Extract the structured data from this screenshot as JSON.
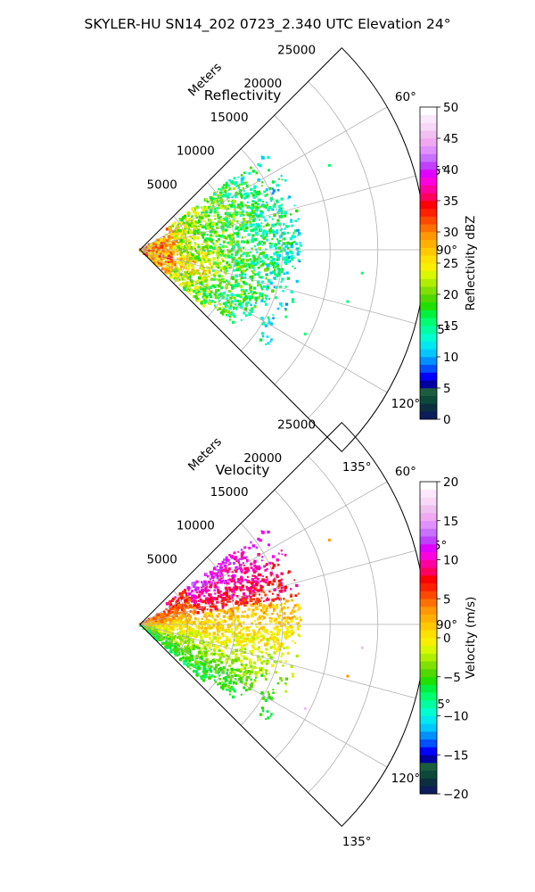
{
  "suptitle": "SKYLER-HU  SN14_202  0723_2.340 UTC Elevation 24°",
  "chart_data": [
    {
      "type": "heatmap",
      "subtype": "polar-sector-ppi",
      "title": "Reflectivity",
      "radial_label": "Meters",
      "r_ticks": [
        "5000",
        "10000",
        "15000",
        "20000",
        "25000"
      ],
      "r_tick_values": [
        5000,
        10000,
        15000,
        20000,
        25000
      ],
      "r_max": 30000,
      "theta_ticks": [
        "60°",
        "75°",
        "90°",
        "105°",
        "120°",
        "135°"
      ],
      "theta_tick_values": [
        60,
        75,
        90,
        105,
        120,
        135
      ],
      "theta_range": [
        45,
        135
      ],
      "grid": true,
      "field": "reflectivity",
      "colorbar": {
        "label": "Reflectivity dBZ",
        "min": 0,
        "max": 50,
        "ticks": [
          "0",
          "5",
          "10",
          "15",
          "20",
          "25",
          "30",
          "35",
          "40",
          "45",
          "50"
        ],
        "colors": [
          "#0b1d5a",
          "#0b2f3f",
          "#0b4a3a",
          "#1a5e3f",
          "#0000a0",
          "#0000ff",
          "#0050ff",
          "#0090ff",
          "#00c8ff",
          "#00e8f0",
          "#00ffd0",
          "#00ffa0",
          "#00ff70",
          "#00f040",
          "#20e000",
          "#50d800",
          "#80e000",
          "#b0ee00",
          "#d8f800",
          "#f8f000",
          "#ffe000",
          "#ffc800",
          "#ffb000",
          "#ff9800",
          "#ff7000",
          "#ff4800",
          "#ff2000",
          "#ff0000",
          "#ff0060",
          "#ff00a0",
          "#ff00e0",
          "#e000ff",
          "#c040ff",
          "#c870ff",
          "#e090ff",
          "#f0a8f0",
          "#f0c0f0",
          "#f8d8f8",
          "#fce8fc",
          "#ffffff"
        ]
      },
      "echo_description": "Echoes concentrated at ranges below about 17000 m, mostly 15–28 dBZ, higher (25–35 dBZ) near the radar"
    },
    {
      "type": "heatmap",
      "subtype": "polar-sector-ppi",
      "title": "Velocity",
      "radial_label": "Meters",
      "r_ticks": [
        "5000",
        "10000",
        "15000",
        "20000",
        "25000"
      ],
      "r_tick_values": [
        5000,
        10000,
        15000,
        20000,
        25000
      ],
      "r_max": 30000,
      "theta_ticks": [
        "60°",
        "75°",
        "90°",
        "105°",
        "120°",
        "135°"
      ],
      "theta_tick_values": [
        60,
        75,
        90,
        105,
        120,
        135
      ],
      "theta_range": [
        45,
        135
      ],
      "grid": true,
      "field": "velocity",
      "colorbar": {
        "label": "Velocity (m/s)",
        "min": -20,
        "max": 20,
        "ticks": [
          "−20",
          "−15",
          "−10",
          "−5",
          "0",
          "5",
          "10",
          "15",
          "20"
        ],
        "colors": [
          "#0b1d5a",
          "#0b2f3f",
          "#0b4a3a",
          "#1a5e3f",
          "#0000a0",
          "#0000ff",
          "#0050ff",
          "#0090ff",
          "#00c8ff",
          "#00e8f0",
          "#00ffd0",
          "#00ffa0",
          "#00ff70",
          "#00f040",
          "#20e000",
          "#50d800",
          "#80e000",
          "#b0ee00",
          "#d8f800",
          "#f8f000",
          "#ffe000",
          "#ffc800",
          "#ffb000",
          "#ff9800",
          "#ff7000",
          "#ff4800",
          "#ff2000",
          "#ff0000",
          "#ff0060",
          "#ff00a0",
          "#ff00e0",
          "#e000ff",
          "#c040ff",
          "#c870ff",
          "#e090ff",
          "#f0a8f0",
          "#f0c0f0",
          "#f8d8f8",
          "#fce8fc",
          "#ffffff"
        ]
      },
      "echo_description": "Positive (orange/red, 5–12 m/s) velocities on the upper-left of the sector, near-zero (yellow) in the middle, negative (green, −3 to −8 m/s) toward the lower edge"
    }
  ]
}
